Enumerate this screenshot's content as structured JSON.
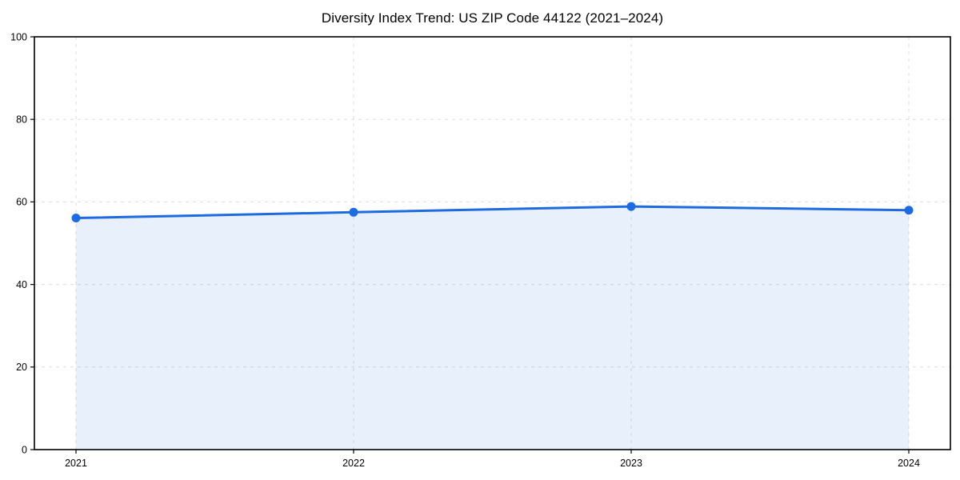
{
  "chart_data": {
    "type": "area",
    "title": "Diversity Index Trend: US ZIP Code 44122 (2021–2024)",
    "series_name": "Diversity Index",
    "x": [
      "2021",
      "2022",
      "2023",
      "2024"
    ],
    "values": [
      56.1,
      57.5,
      58.9,
      58.0
    ],
    "xlabel": "",
    "ylabel": "",
    "ylim": [
      0,
      100
    ],
    "yticks": [
      0,
      20,
      40,
      60,
      80,
      100
    ],
    "grid": true,
    "legend": "none",
    "colors": {
      "line": "#1e6ae1",
      "fill": "#1e6ae1",
      "fill_opacity": 0.1,
      "grid": "#dcdcdc",
      "spine": "#000000",
      "text": "#000000",
      "background": "#ffffff"
    }
  }
}
